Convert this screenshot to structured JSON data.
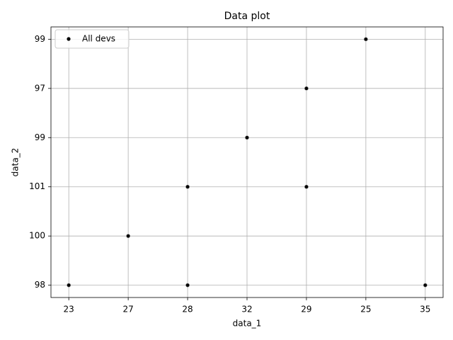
{
  "chart_data": {
    "type": "scatter",
    "title": "Data plot",
    "x_label": "data_1",
    "y_label": "data_2",
    "xlim": [
      -0.3,
      6.3
    ],
    "ylim": [
      -0.25,
      5.25
    ],
    "xticks": [
      {
        "value": 0,
        "label": "23"
      },
      {
        "value": 1,
        "label": "27"
      },
      {
        "value": 2,
        "label": "28"
      },
      {
        "value": 3,
        "label": "32"
      },
      {
        "value": 4,
        "label": "29"
      },
      {
        "value": 5,
        "label": "25"
      },
      {
        "value": 6,
        "label": "35"
      }
    ],
    "yticks": [
      {
        "value": 0,
        "label": "98"
      },
      {
        "value": 1,
        "label": "100"
      },
      {
        "value": 2,
        "label": "101"
      },
      {
        "value": 3,
        "label": "99"
      },
      {
        "value": 4,
        "label": "97"
      },
      {
        "value": 5,
        "label": "99"
      }
    ],
    "grid": true,
    "legend": "upper left",
    "series": [
      {
        "name": "All devs",
        "color": "#000000",
        "x": [
          0,
          1,
          2,
          2,
          3,
          4,
          4,
          5,
          6
        ],
        "values": [
          0,
          1,
          0,
          2,
          3,
          2,
          4,
          5,
          0
        ]
      }
    ]
  }
}
